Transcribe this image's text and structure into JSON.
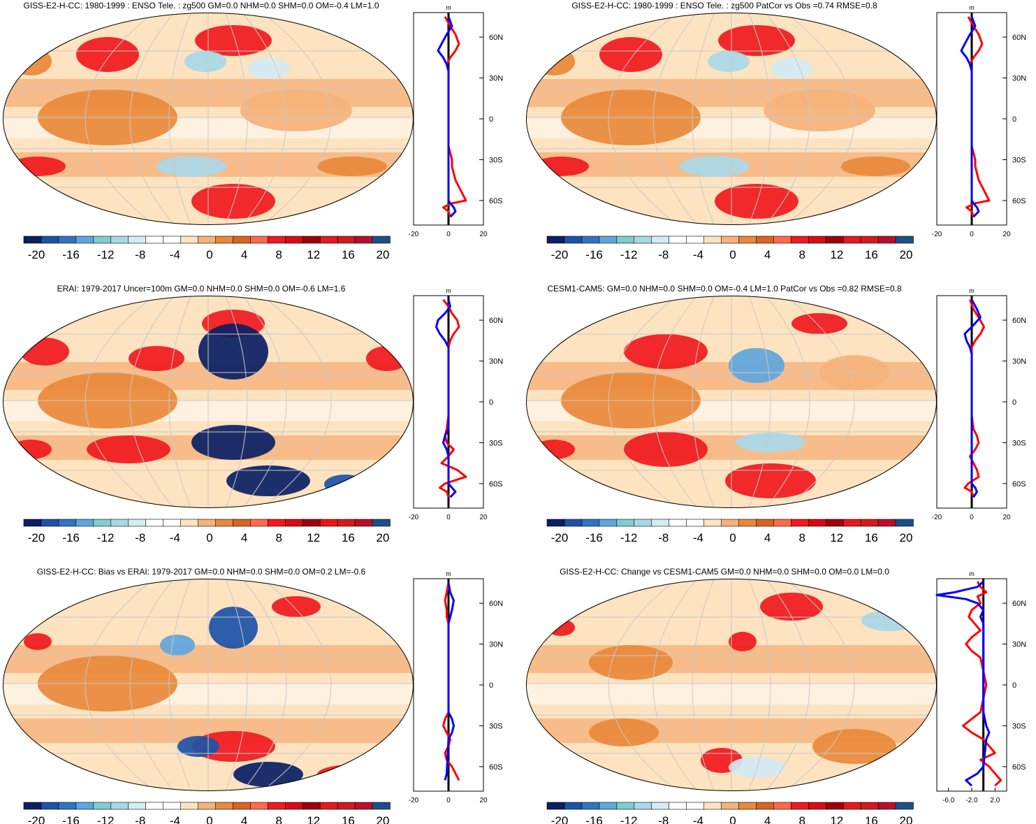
{
  "colors": {
    "ocean_bg": "#fde3c0",
    "outline": "#000000",
    "grid": "#c8c8c8",
    "zonal_model": "#ff0000",
    "zonal_obs": "#0000ff",
    "zonal_zero": "#000000"
  },
  "colorbar": {
    "swatches": [
      "#0a1f64",
      "#1c52a8",
      "#2f74c1",
      "#5ea6dd",
      "#7fcdcd",
      "#a8d8e8",
      "#d3ecf5",
      "#ffffff",
      "#ffffff",
      "#fde3c0",
      "#f5b27a",
      "#e9893a",
      "#d8641f",
      "#ff6a4a",
      "#f0191d",
      "#d60c14",
      "#a0000b",
      "#e31a1c",
      "#d11b1f",
      "#b8102a",
      "#1c4f8a"
    ],
    "tick_labels": [
      "-20",
      "-16",
      "-12",
      "-8",
      "-4",
      "0",
      "4",
      "8",
      "12",
      "16",
      "20"
    ]
  },
  "panels": [
    {
      "id": "giss-ensotele",
      "title": "GISS-E2-H-CC: 1980-1999 : ENSO Tele. : zg500 GM=0.0 NHM=0.0 SHM=0.0 OM=-0.4 LM=1.0",
      "zonal": {
        "unit": "m",
        "xlim": [
          -20,
          20
        ],
        "x_ticks": [
          "-20",
          "0",
          "20"
        ],
        "lat_labels": [
          "60N",
          "30N",
          "0",
          "30S",
          "60S"
        ]
      }
    },
    {
      "id": "giss-patcor",
      "title": "GISS-E2-H-CC: 1980-1999 : ENSO Tele. : zg500 PatCor vs Obs =0.74 RMSE=0.8",
      "zonal": {
        "unit": "m",
        "xlim": [
          -20,
          20
        ],
        "x_ticks": [
          "-20",
          "0",
          "20"
        ],
        "lat_labels": [
          "60N",
          "30N",
          "0",
          "30S",
          "60S"
        ]
      }
    },
    {
      "id": "erai",
      "title": "ERAI: 1979-2017 Uncer=100m GM=0.0 NHM=0.0 SHM=0.0 OM=-0.6 LM=1.6",
      "zonal": {
        "unit": "m",
        "xlim": [
          -20,
          20
        ],
        "x_ticks": [
          "-20",
          "0",
          "20"
        ],
        "lat_labels": [
          "60N",
          "30N",
          "0",
          "30S",
          "60S"
        ]
      }
    },
    {
      "id": "cesm",
      "title": "CESM1-CAM5: GM=0.0 NHM=0.0 SHM=0.0 OM=-0.4 LM=1.0 PatCor vs Obs =0.82 RMSE=0.8",
      "zonal": {
        "unit": "m",
        "xlim": [
          -20,
          20
        ],
        "x_ticks": [
          "-20",
          "0",
          "20"
        ],
        "lat_labels": [
          "60N",
          "30N",
          "0",
          "30S",
          "60S"
        ]
      }
    },
    {
      "id": "bias",
      "title": "GISS-E2-H-CC: Bias vs ERAI: 1979-2017 GM=0.0 NHM=0.0 SHM=0.0 OM=0.2 LM=-0.6",
      "zonal": {
        "unit": "m",
        "xlim": [
          -20,
          20
        ],
        "x_ticks": [
          "-20",
          "0",
          "20"
        ],
        "lat_labels": [
          "60N",
          "30N",
          "0",
          "30S",
          "60S"
        ]
      }
    },
    {
      "id": "change",
      "title": "GISS-E2-H-CC: Change vs CESM1-CAM5 GM=0.0 NHM=0.0 SHM=0.0 OM=0.0 LM=0.0",
      "zonal": {
        "unit": "m",
        "xlim": [
          -8,
          4
        ],
        "x_ticks": [
          "-6.0",
          "-2.0",
          "2.0"
        ],
        "lat_labels": [
          "60N",
          "30N",
          "0",
          "30S",
          "60S"
        ]
      }
    }
  ],
  "chart_data": [
    {
      "type": "line",
      "title": "GISS-E2-H-CC: 1980-1999 : ENSO Tele. : zg500 GM=0.0 NHM=0.0 SHM=0.0 OM=-0.4 LM=1.0",
      "xlabel": "m",
      "xlim": [
        -20,
        20
      ],
      "ylim": [
        -78,
        78
      ],
      "series": [
        {
          "lat": [
            75,
            68,
            62,
            55,
            50,
            45,
            40,
            35,
            30,
            20,
            10,
            0,
            -10,
            -20,
            -25,
            -30,
            -35,
            -40,
            -45,
            -50,
            -55,
            -60,
            -62,
            -65,
            -68,
            -72
          ],
          "values": [
            -2,
            1,
            4,
            6,
            4,
            1,
            -1,
            0,
            0,
            0,
            0,
            0,
            0,
            0,
            1,
            2,
            2,
            3,
            4,
            6,
            8,
            10,
            2,
            -3,
            0,
            1
          ]
        },
        {
          "lat": [
            75,
            68,
            62,
            55,
            50,
            45,
            40,
            35,
            30,
            20,
            0,
            -30,
            -60,
            -62,
            -65,
            -68,
            -72
          ],
          "values": [
            0,
            2,
            -1,
            -4,
            -6,
            -3,
            -1,
            0,
            0,
            0,
            0,
            0,
            0,
            1,
            3,
            4,
            1
          ]
        }
      ]
    },
    {
      "type": "line",
      "title": "GISS-E2-H-CC: 1980-1999 : ENSO Tele. : zg500 PatCor vs Obs =0.74 RMSE=0.8",
      "xlabel": "m",
      "xlim": [
        -20,
        20
      ],
      "ylim": [
        -78,
        78
      ],
      "series": [
        {
          "lat": [
            75,
            68,
            62,
            55,
            50,
            45,
            40,
            35,
            30,
            20,
            10,
            0,
            -10,
            -20,
            -25,
            -30,
            -35,
            -40,
            -45,
            -50,
            -55,
            -60,
            -62,
            -65,
            -68,
            -72
          ],
          "values": [
            -2,
            1,
            4,
            6,
            4,
            1,
            -1,
            0,
            0,
            0,
            0,
            0,
            0,
            0,
            1,
            2,
            2,
            3,
            4,
            6,
            8,
            10,
            2,
            -3,
            0,
            1
          ]
        },
        {
          "lat": [
            75,
            68,
            62,
            55,
            50,
            45,
            40,
            35,
            30,
            20,
            0,
            -30,
            -60,
            -62,
            -65,
            -68,
            -72
          ],
          "values": [
            0,
            2,
            -1,
            -4,
            -6,
            -3,
            -1,
            0,
            0,
            0,
            0,
            0,
            0,
            1,
            3,
            4,
            1
          ]
        }
      ]
    },
    {
      "type": "line",
      "title": "ERAI: 1979-2017 Uncer=100m GM=0.0 NHM=0.0 SHM=0.0 OM=-0.6 LM=1.6",
      "xlabel": "m",
      "xlim": [
        -20,
        20
      ],
      "ylim": [
        -78,
        78
      ],
      "series": [
        {
          "lat": [
            75,
            70,
            65,
            60,
            55,
            50,
            45,
            40,
            35,
            30,
            20,
            10,
            0,
            -10,
            -20,
            -25,
            -30,
            -35,
            -40,
            -45,
            -50,
            -55,
            -60,
            -63,
            -66,
            -70
          ],
          "values": [
            -3,
            0,
            2,
            5,
            6,
            3,
            1,
            0,
            0,
            0,
            0,
            0,
            0,
            0,
            -1,
            -2,
            -1,
            3,
            0,
            -4,
            5,
            10,
            -2,
            -5,
            -1,
            0
          ]
        },
        {
          "lat": [
            75,
            70,
            65,
            60,
            55,
            50,
            45,
            40,
            35,
            30,
            20,
            0,
            -20,
            -25,
            -30,
            -35,
            -40,
            -60,
            -63,
            -66,
            -70
          ],
          "values": [
            0,
            1,
            -2,
            -6,
            -7,
            -5,
            -2,
            0,
            0,
            0,
            0,
            0,
            0,
            -2,
            -3,
            -1,
            0,
            0,
            2,
            4,
            1
          ]
        }
      ]
    },
    {
      "type": "line",
      "title": "CESM1-CAM5: GM=0.0 NHM=0.0 SHM=0.0 OM=-0.4 LM=1.0 PatCor vs Obs =0.82 RMSE=0.8",
      "xlabel": "m",
      "xlim": [
        -20,
        20
      ],
      "ylim": [
        -78,
        78
      ],
      "series": [
        {
          "lat": [
            75,
            68,
            62,
            55,
            50,
            45,
            40,
            35,
            30,
            20,
            10,
            0,
            -10,
            -20,
            -25,
            -30,
            -35,
            -40,
            -45,
            -50,
            -55,
            -60,
            -63,
            -66,
            -70
          ],
          "values": [
            -1,
            1,
            4,
            7,
            5,
            2,
            0,
            0,
            0,
            0,
            0,
            0,
            0,
            1,
            3,
            4,
            2,
            -1,
            1,
            3,
            4,
            -2,
            -4,
            0,
            1
          ]
        },
        {
          "lat": [
            75,
            68,
            62,
            55,
            50,
            45,
            40,
            35,
            30,
            20,
            0,
            -30,
            -60,
            -63,
            -66,
            -70
          ],
          "values": [
            0,
            3,
            5,
            0,
            -4,
            -3,
            -1,
            0,
            0,
            0,
            0,
            0,
            0,
            2,
            3,
            1
          ]
        }
      ]
    },
    {
      "type": "line",
      "title": "GISS-E2-H-CC: Bias vs ERAI: 1979-2017 GM=0.0 NHM=0.0 SHM=0.0 OM=0.2 LM=-0.6",
      "xlabel": "m",
      "xlim": [
        -20,
        20
      ],
      "ylim": [
        -78,
        78
      ],
      "series": [
        {
          "lat": [
            75,
            68,
            62,
            55,
            50,
            45,
            40,
            35,
            30,
            20,
            10,
            0,
            -10,
            -20,
            -25,
            -30,
            -35,
            -40,
            -45,
            -50,
            -55,
            -60,
            -65,
            -70
          ],
          "values": [
            0,
            -1,
            -2,
            -1,
            -1,
            0,
            0,
            0,
            0,
            0,
            0,
            0,
            0,
            0,
            -2,
            -3,
            -1,
            1,
            0,
            -2,
            -1,
            2,
            4,
            6
          ]
        },
        {
          "lat": [
            75,
            68,
            62,
            55,
            50,
            45,
            40,
            35,
            30,
            20,
            0,
            -20,
            -25,
            -30,
            -35,
            -40,
            -65,
            -70
          ],
          "values": [
            0,
            1,
            3,
            2,
            1,
            0,
            0,
            0,
            0,
            0,
            0,
            0,
            2,
            3,
            2,
            0,
            -1,
            -2
          ]
        }
      ]
    },
    {
      "type": "line",
      "title": "GISS-E2-H-CC: Change vs CESM1-CAM5 GM=0.0 NHM=0.0 SHM=0.0 OM=0.0 LM=0.0",
      "xlabel": "m",
      "xlim": [
        -8,
        4
      ],
      "ylim": [
        -78,
        78
      ],
      "series": [
        {
          "lat": [
            76,
            72,
            68,
            65,
            60,
            55,
            50,
            45,
            40,
            35,
            30,
            25,
            20,
            10,
            0,
            -10,
            -20,
            -25,
            -30,
            -35,
            -40,
            -45,
            -50,
            -55,
            -60,
            -65,
            -70,
            -74
          ],
          "values": [
            -1,
            -0.5,
            0.5,
            -1,
            -0.5,
            -2,
            -2.5,
            -1.5,
            -0.5,
            -2,
            -3,
            -2,
            -0.5,
            0,
            0.5,
            0,
            -0.5,
            -2,
            -3.5,
            -2,
            0,
            1,
            2,
            -0.5,
            1,
            2,
            3,
            2
          ]
        },
        {
          "lat": [
            76,
            72,
            68,
            66,
            63,
            60,
            55,
            50,
            45,
            40,
            35,
            30,
            20,
            0,
            -20,
            -30,
            -35,
            -40,
            -60,
            -65,
            -70,
            -74
          ],
          "values": [
            0,
            -1,
            -5,
            -8,
            -3,
            -1,
            0,
            -0.5,
            0,
            0,
            0,
            0,
            0,
            0,
            0,
            0.5,
            1,
            0.5,
            0,
            -1,
            -3,
            -2
          ]
        }
      ]
    }
  ]
}
